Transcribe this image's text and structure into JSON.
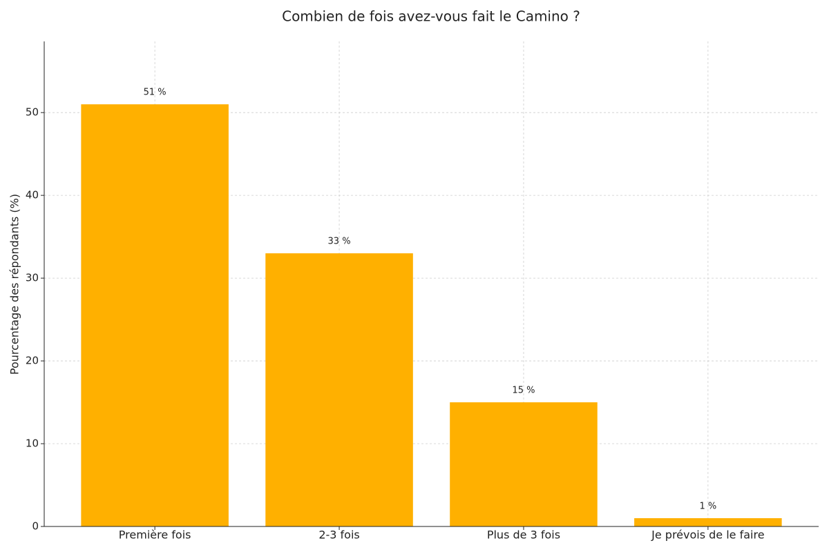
{
  "chart_data": {
    "type": "bar",
    "title": "Combien de fois avez-vous fait le Camino ?",
    "y_label": "Pourcentage des répondants (%)",
    "categories": [
      "Première fois",
      "2-3 fois",
      "Plus de 3 fois",
      "Je prévois de le faire"
    ],
    "values": [
      51,
      33,
      15,
      1
    ],
    "value_labels": [
      "51 %",
      "33 %",
      "15 %",
      "1 %"
    ],
    "color": "#ffb000",
    "ylim": [
      0,
      58.6
    ],
    "yticks": [
      0,
      10,
      20,
      30,
      40,
      50
    ],
    "grid": true
  }
}
